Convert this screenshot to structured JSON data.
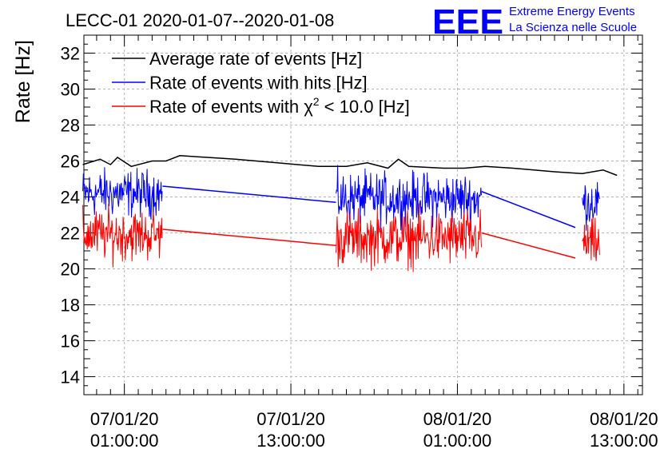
{
  "logo": {
    "mark": "EEE",
    "line1": "Extreme Energy Events",
    "line2": "La Scienza nelle Scuole",
    "color": "#0000ff"
  },
  "chart_data": {
    "type": "line",
    "title": "LECC-01 2020-01-07--2020-01-08",
    "ylabel": "Rate [Hz]",
    "xlabel": "",
    "ylim": [
      13,
      33
    ],
    "yticks": [
      14,
      16,
      18,
      20,
      22,
      24,
      26,
      28,
      30,
      32
    ],
    "xlim": [
      "2020-01-06 22:05",
      "2020-01-08 14:20"
    ],
    "xticks": [
      {
        "x": "2020-01-07 01:00",
        "label_date": "07/01/20",
        "label_time": "01:00:00"
      },
      {
        "x": "2020-01-07 13:00",
        "label_date": "07/01/20",
        "label_time": "13:00:00"
      },
      {
        "x": "2020-01-08 01:00",
        "label_date": "08/01/20",
        "label_time": "01:00:00"
      },
      {
        "x": "2020-01-08 13:00",
        "label_date": "08/01/20",
        "label_time": "13:00:00"
      }
    ],
    "grid": true,
    "legend_position": "top-left",
    "series": [
      {
        "name": "Average rate of events [Hz]",
        "name_parts": {
          "pre": "Average rate of events [Hz]"
        },
        "color": "#000000",
        "points": [
          [
            "2020-01-06 22:00",
            25.8
          ],
          [
            "2020-01-06 23:15",
            26.1
          ],
          [
            "2020-01-07 00:00",
            25.8
          ],
          [
            "2020-01-07 00:30",
            26.2
          ],
          [
            "2020-01-07 01:30",
            25.7
          ],
          [
            "2020-01-07 03:00",
            26.0
          ],
          [
            "2020-01-07 04:00",
            26.0
          ],
          [
            "2020-01-07 05:00",
            26.3
          ],
          [
            "2020-01-07 09:00",
            26.1
          ],
          [
            "2020-01-07 12:00",
            25.9
          ],
          [
            "2020-01-07 15:00",
            25.7
          ],
          [
            "2020-01-07 17:00",
            25.7
          ],
          [
            "2020-01-07 18:30",
            25.9
          ],
          [
            "2020-01-07 20:00",
            25.6
          ],
          [
            "2020-01-07 20:45",
            26.1
          ],
          [
            "2020-01-07 21:30",
            25.7
          ],
          [
            "2020-01-08 00:00",
            25.6
          ],
          [
            "2020-01-08 01:30",
            25.6
          ],
          [
            "2020-01-08 03:00",
            25.7
          ],
          [
            "2020-01-08 05:00",
            25.6
          ],
          [
            "2020-01-08 08:00",
            25.4
          ],
          [
            "2020-01-08 10:00",
            25.3
          ],
          [
            "2020-01-08 11:30",
            25.5
          ],
          [
            "2020-01-08 12:30",
            25.2
          ]
        ]
      },
      {
        "name": "Rate of events with hits [Hz]",
        "name_parts": {
          "pre": "Rate of events with hits [Hz]"
        },
        "color": "#0000ff",
        "segments": [
          {
            "start": "2020-01-06 22:00",
            "end": "2020-01-07 03:45",
            "mean": 24.2,
            "spread": 1.3
          },
          {
            "start": "2020-01-07 16:15",
            "end": "2020-01-08 02:45",
            "mean": 23.9,
            "spread": 1.4
          },
          {
            "start": "2020-01-08 10:00",
            "end": "2020-01-08 11:15",
            "mean": 23.7,
            "spread": 1.3
          }
        ],
        "connectors": [
          [
            [
              "2020-01-07 03:45",
              24.6
            ],
            [
              "2020-01-07 16:15",
              23.7
            ]
          ],
          [
            [
              "2020-01-08 02:45",
              24.3
            ],
            [
              "2020-01-08 09:30",
              22.3
            ]
          ]
        ]
      },
      {
        "name": "Rate of events with χ² < 10.0 [Hz]",
        "name_parts": {
          "pre": "Rate of events with χ",
          "sup": "2",
          "post": " < 10.0 [Hz]"
        },
        "color": "#ff0000",
        "segments": [
          {
            "start": "2020-01-06 22:00",
            "end": "2020-01-07 03:45",
            "mean": 21.9,
            "spread": 1.4
          },
          {
            "start": "2020-01-07 16:15",
            "end": "2020-01-08 02:45",
            "mean": 21.7,
            "spread": 1.5
          },
          {
            "start": "2020-01-08 10:00",
            "end": "2020-01-08 11:15",
            "mean": 21.4,
            "spread": 1.3
          }
        ],
        "connectors": [
          [
            [
              "2020-01-07 03:45",
              22.2
            ],
            [
              "2020-01-07 16:15",
              21.3
            ]
          ],
          [
            [
              "2020-01-08 02:45",
              22.0
            ],
            [
              "2020-01-08 09:30",
              20.6
            ]
          ]
        ]
      }
    ]
  }
}
